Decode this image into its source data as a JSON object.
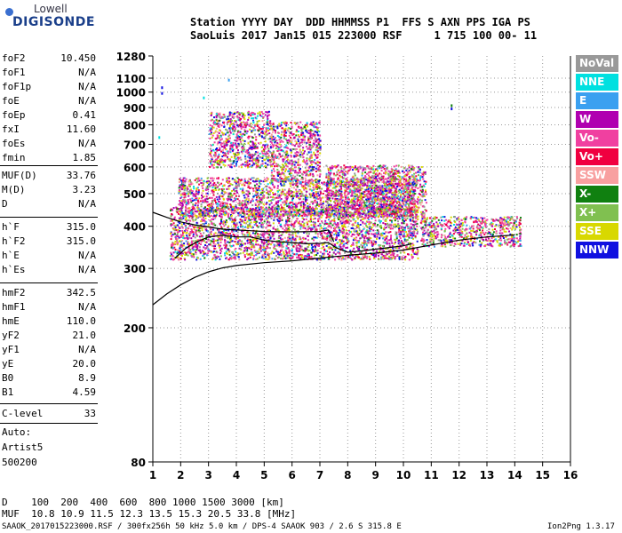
{
  "logo": {
    "line1": "Lowell",
    "line2": "DIGISONDE"
  },
  "header": {
    "line1": "Station YYYY DAY  DDD HHMMSS P1  FFS S AXN PPS IGA PS",
    "line2": "SaoLuis 2017 Jan15 015 223000 RSF     1 715 100 00- 11"
  },
  "params_group1": [
    {
      "label": "foF2",
      "value": "10.450"
    },
    {
      "label": "foF1",
      "value": "N/A"
    },
    {
      "label": "foF1p",
      "value": "N/A"
    },
    {
      "label": "foE",
      "value": "N/A"
    },
    {
      "label": "foEp",
      "value": "0.41"
    },
    {
      "label": "fxI",
      "value": "11.60"
    },
    {
      "label": "foEs",
      "value": "N/A"
    },
    {
      "label": "fmin",
      "value": "1.85"
    }
  ],
  "params_group2": [
    {
      "label": "MUF(D)",
      "value": "33.76"
    },
    {
      "label": "M(D)",
      "value": "3.23"
    },
    {
      "label": "D",
      "value": "N/A"
    }
  ],
  "params_group3": [
    {
      "label": "h`F",
      "value": "315.0"
    },
    {
      "label": "h`F2",
      "value": "315.0"
    },
    {
      "label": "h`E",
      "value": "N/A"
    },
    {
      "label": "h`Es",
      "value": "N/A"
    }
  ],
  "params_group4": [
    {
      "label": "hmF2",
      "value": "342.5"
    },
    {
      "label": "hmF1",
      "value": "N/A"
    },
    {
      "label": "hmE",
      "value": "110.0"
    },
    {
      "label": "yF2",
      "value": "21.0"
    },
    {
      "label": "yF1",
      "value": "N/A"
    },
    {
      "label": "yE",
      "value": "20.0"
    },
    {
      "label": "B0",
      "value": "8.9"
    },
    {
      "label": "B1",
      "value": "4.59"
    }
  ],
  "params_group5": [
    {
      "label": "C-level",
      "value": "33"
    }
  ],
  "auto": {
    "line1": "Auto:",
    "line2": "Artist5",
    "line3": "500200"
  },
  "legend": [
    {
      "label": "NoVal",
      "color": "#999999"
    },
    {
      "label": "NNE",
      "color": "#00e0e0"
    },
    {
      "label": "E",
      "color": "#3aa0f0"
    },
    {
      "label": "W",
      "color": "#b000b0"
    },
    {
      "label": "Vo-",
      "color": "#f040a0"
    },
    {
      "label": "Vo+",
      "color": "#f00040"
    },
    {
      "label": "SSW",
      "color": "#f8a0a0"
    },
    {
      "label": "X-",
      "color": "#108010"
    },
    {
      "label": "X+",
      "color": "#80c050"
    },
    {
      "label": "SSE",
      "color": "#d8d800"
    },
    {
      "label": "NNW",
      "color": "#1010e0"
    }
  ],
  "muf_table": {
    "d_line": "D    100  200  400  600  800 1000 1500 3000 [km]",
    "muf_line": "MUF  10.8 10.9 11.5 12.3 13.5 15.3 20.5 33.8 [MHz]"
  },
  "footer": {
    "left": "SAAOK_2017015223000.RSF / 300fx256h 50 kHz 5.0 km / DPS-4 SAAOK 903 / 2.6 S 315.8 E",
    "right": "Ion2Png 1.3.17"
  },
  "chart_data": {
    "type": "scatter",
    "title": "",
    "xlabel": "",
    "ylabel": "",
    "xlim": [
      1,
      16
    ],
    "ylim": [
      80,
      1280
    ],
    "xticks": [
      1,
      2,
      3,
      4,
      5,
      6,
      7,
      8,
      9,
      10,
      11,
      12,
      13,
      14,
      15,
      16
    ],
    "yticks": [
      80,
      200,
      300,
      400,
      500,
      600,
      700,
      800,
      900,
      1000,
      1100,
      1280
    ],
    "grid": true,
    "y_scale": "log",
    "series": [
      {
        "name": "",
        "kind": "line",
        "color": "#000000",
        "points": [
          [
            1.0,
            234
          ],
          [
            1.5,
            252
          ],
          [
            2.0,
            268
          ],
          [
            2.5,
            282
          ],
          [
            3.0,
            293
          ],
          [
            3.5,
            301
          ],
          [
            4.0,
            306
          ],
          [
            5.0,
            312
          ],
          [
            6.0,
            316
          ],
          [
            7.0,
            322
          ],
          [
            8.0,
            328
          ],
          [
            9.0,
            333
          ],
          [
            10.0,
            340
          ],
          [
            11.0,
            352
          ],
          [
            12.0,
            364
          ],
          [
            13.0,
            372
          ],
          [
            14.0,
            377
          ]
        ]
      },
      {
        "name": "",
        "kind": "line",
        "color": "#000000",
        "points": [
          [
            1.8,
            322
          ],
          [
            2.2,
            345
          ],
          [
            2.6,
            360
          ],
          [
            3.0,
            372
          ],
          [
            3.5,
            376
          ],
          [
            4.0,
            372
          ],
          [
            4.5,
            372
          ],
          [
            5.0,
            364
          ],
          [
            5.5,
            360
          ],
          [
            6.0,
            358
          ],
          [
            6.5,
            355
          ],
          [
            7.0,
            356
          ],
          [
            7.3,
            358
          ],
          [
            7.6,
            345
          ],
          [
            8.0,
            335
          ],
          [
            8.5,
            338
          ],
          [
            9.0,
            342
          ],
          [
            9.5,
            346
          ],
          [
            10.0,
            350
          ],
          [
            10.3,
            355
          ]
        ]
      },
      {
        "name": "",
        "kind": "line",
        "color": "#000000",
        "points": [
          [
            1.0,
            440
          ],
          [
            1.5,
            425
          ],
          [
            2.0,
            412
          ],
          [
            2.5,
            404
          ],
          [
            3.0,
            398
          ],
          [
            3.5,
            392
          ],
          [
            4.0,
            390
          ],
          [
            4.5,
            388
          ],
          [
            5.0,
            386
          ],
          [
            6.0,
            385
          ],
          [
            7.0,
            386
          ],
          [
            7.3,
            390
          ],
          [
            7.5,
            360
          ]
        ]
      }
    ],
    "echo_region": [
      {
        "fmin": 1.6,
        "fmax": 10.5,
        "hmin": 320,
        "hmax": 460
      },
      {
        "fmin": 1.9,
        "fmax": 10.4,
        "hmin": 430,
        "hmax": 560
      },
      {
        "fmin": 3.0,
        "fmax": 5.2,
        "hmin": 600,
        "hmax": 880
      },
      {
        "fmin": 5.2,
        "fmax": 7.0,
        "hmin": 540,
        "hmax": 820
      },
      {
        "fmin": 7.2,
        "fmax": 10.8,
        "hmin": 430,
        "hmax": 610
      },
      {
        "fmin": 10.6,
        "fmax": 14.2,
        "hmin": 350,
        "hmax": 430
      }
    ],
    "isolated_points": [
      {
        "x": 1.3,
        "y": 1040,
        "color": "#1010e0"
      },
      {
        "x": 1.3,
        "y": 1000,
        "color": "#1010e0"
      },
      {
        "x": 3.7,
        "y": 1095,
        "color": "#3aa0f0"
      },
      {
        "x": 2.8,
        "y": 970,
        "color": "#00e0e0"
      },
      {
        "x": 11.7,
        "y": 920,
        "color": "#108010"
      },
      {
        "x": 11.7,
        "y": 900,
        "color": "#1010e0"
      },
      {
        "x": 1.2,
        "y": 740,
        "color": "#00e0e0"
      }
    ]
  }
}
